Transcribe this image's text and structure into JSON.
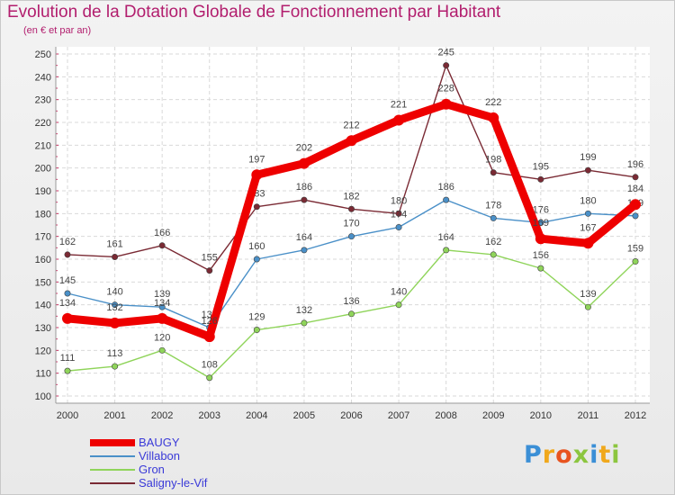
{
  "chart_data": {
    "type": "line",
    "title": "Evolution de la Dotation Globale de Fonctionnement par Habitant",
    "subtitle": "(en € et par an)",
    "xlabel": "",
    "ylabel": "",
    "ylim": [
      100,
      250
    ],
    "y_ticks": [
      100,
      110,
      120,
      130,
      140,
      150,
      160,
      170,
      180,
      190,
      200,
      210,
      220,
      230,
      240,
      250
    ],
    "x": [
      "2000",
      "2001",
      "2002",
      "2003",
      "2004",
      "2005",
      "2006",
      "2007",
      "2008",
      "2009",
      "2010",
      "2011",
      "2012"
    ],
    "grid": true,
    "legend_position": "bottom-left",
    "series": [
      {
        "name": "Saligny-le-Vif",
        "color": "#7a2a34",
        "values": [
          162,
          161,
          166,
          155,
          183,
          186,
          182,
          180,
          245,
          198,
          195,
          199,
          196
        ]
      },
      {
        "name": "Gron",
        "color": "#8fd45a",
        "values": [
          111,
          113,
          120,
          108,
          129,
          132,
          136,
          140,
          164,
          162,
          156,
          139,
          159
        ]
      },
      {
        "name": "Villabon",
        "color": "#4a90c8",
        "values": [
          145,
          140,
          139,
          130,
          160,
          164,
          170,
          174,
          186,
          178,
          176,
          180,
          179
        ]
      },
      {
        "name": "BAUGY",
        "color": "#ee0000",
        "values": [
          134,
          132,
          134,
          126,
          197,
          202,
          212,
          221,
          228,
          222,
          169,
          167,
          184
        ]
      }
    ],
    "legend_order": [
      "BAUGY",
      "Villabon",
      "Gron",
      "Saligny-le-Vif"
    ]
  },
  "branding": {
    "logo_letters": [
      "P",
      "r",
      "o",
      "x",
      "i",
      "t",
      "i"
    ]
  }
}
